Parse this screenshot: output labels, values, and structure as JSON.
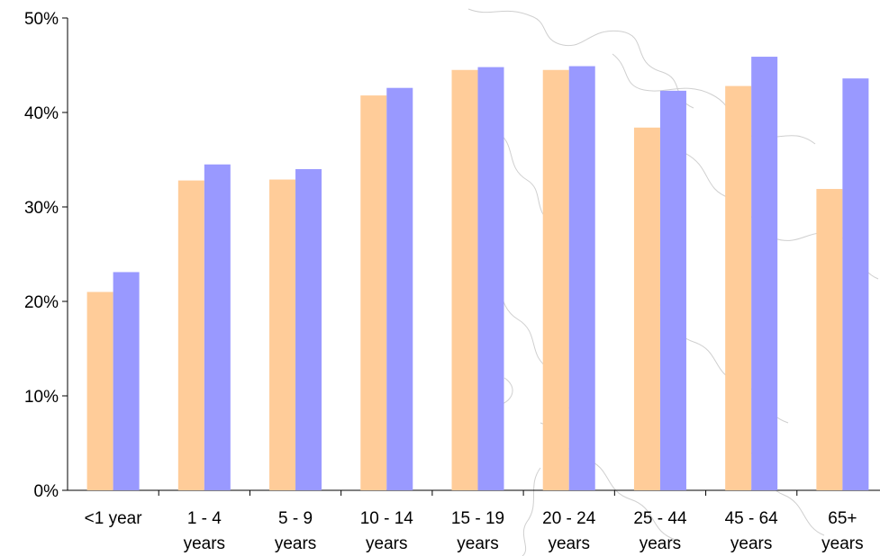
{
  "chart_data": {
    "type": "bar",
    "title": "",
    "xlabel": "",
    "ylabel": "",
    "categories": [
      [
        "<1 year"
      ],
      [
        "1 - 4",
        "years"
      ],
      [
        "5 - 9",
        "years"
      ],
      [
        "10 - 14",
        "years"
      ],
      [
        "15 - 19",
        "years"
      ],
      [
        "20 - 24",
        "years"
      ],
      [
        "25 - 44",
        "years"
      ],
      [
        "45 - 64",
        "years"
      ],
      [
        "65+",
        "years"
      ]
    ],
    "series": [
      {
        "color": "#ffcc99",
        "values": [
          21.0,
          32.8,
          32.9,
          41.8,
          44.5,
          44.5,
          38.4,
          42.8,
          31.9
        ]
      },
      {
        "color": "#9999ff",
        "values": [
          23.1,
          34.5,
          34.0,
          42.6,
          44.8,
          44.9,
          42.3,
          45.9,
          43.6
        ]
      }
    ],
    "ylim": [
      0,
      50
    ],
    "yticks": [
      0,
      10,
      20,
      30,
      40,
      50
    ],
    "ytick_labels": [
      "0%",
      "10%",
      "20%",
      "30%",
      "40%",
      "50%"
    ],
    "grid": false,
    "legend": "none",
    "background": "faint map outline watermark"
  }
}
